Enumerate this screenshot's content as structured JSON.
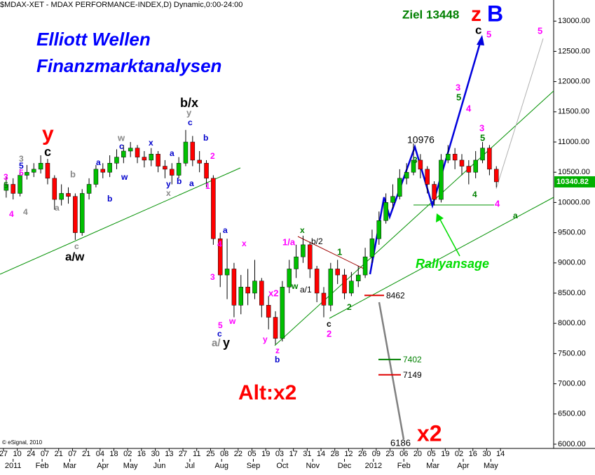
{
  "chart_data": {
    "type": "candlestick",
    "title": "$MDAX-XET - MDAX PERFORMANCE-INDEX,D) Dynamic,0:00-24:00",
    "source": "© eSignal, 2010",
    "up_color": "#00c000",
    "down_color": "#ff0000",
    "x": [
      2,
      7,
      12,
      17,
      22,
      27,
      32,
      37,
      42,
      47,
      52,
      57,
      62,
      67,
      72,
      77,
      82,
      87,
      92,
      97,
      102,
      107,
      112,
      117,
      122,
      127,
      132,
      137,
      142,
      147,
      152,
      157,
      162,
      167,
      172,
      177,
      182,
      187,
      192,
      197,
      202,
      207,
      212,
      217,
      222,
      227,
      232,
      237,
      242,
      247,
      252,
      257,
      262,
      267,
      272,
      277,
      282,
      287,
      292,
      297,
      302,
      307,
      312,
      317,
      322,
      327,
      332,
      337,
      342,
      347,
      352,
      357
    ],
    "candles": [
      [
        10200,
        10420,
        10080,
        10300
      ],
      [
        10300,
        10400,
        10050,
        10150
      ],
      [
        10150,
        10550,
        10100,
        10450
      ],
      [
        10450,
        10620,
        10380,
        10500
      ],
      [
        10500,
        10650,
        10420,
        10550
      ],
      [
        10550,
        10780,
        10480,
        10650
      ],
      [
        10650,
        10720,
        10300,
        10400
      ],
      [
        10400,
        10450,
        9880,
        10050
      ],
      [
        10050,
        10300,
        9950,
        10150
      ],
      [
        10150,
        10250,
        9980,
        10100
      ],
      [
        10100,
        10150,
        9380,
        9500
      ],
      [
        9500,
        10220,
        9450,
        10150
      ],
      [
        10150,
        10400,
        10050,
        10300
      ],
      [
        10300,
        10620,
        10250,
        10550
      ],
      [
        10550,
        10650,
        10400,
        10500
      ],
      [
        10500,
        10780,
        10420,
        10650
      ],
      [
        10650,
        10880,
        10550,
        10750
      ],
      [
        10750,
        10950,
        10650,
        10850
      ],
      [
        10850,
        11000,
        10750,
        10900
      ],
      [
        10900,
        10950,
        10650,
        10750
      ],
      [
        10750,
        10850,
        10580,
        10700
      ],
      [
        10700,
        10900,
        10600,
        10800
      ],
      [
        10800,
        10850,
        10500,
        10600
      ],
      [
        10600,
        10700,
        10400,
        10550
      ],
      [
        10550,
        10650,
        10300,
        10450
      ],
      [
        10450,
        10750,
        10400,
        10650
      ],
      [
        10650,
        11200,
        10600,
        11000
      ],
      [
        11000,
        11100,
        10600,
        10700
      ],
      [
        10700,
        10850,
        10500,
        10650
      ],
      [
        10650,
        10700,
        10250,
        10400
      ],
      [
        10400,
        10450,
        9300,
        9400
      ],
      [
        9400,
        9500,
        8600,
        8800
      ],
      [
        8800,
        9400,
        8400,
        8900
      ],
      [
        8900,
        9000,
        8100,
        8300
      ],
      [
        8300,
        8800,
        8150,
        8600
      ],
      [
        8600,
        8900,
        8300,
        8500
      ],
      [
        8500,
        9050,
        8400,
        8700
      ],
      [
        8700,
        8750,
        8100,
        8300
      ],
      [
        8300,
        8450,
        7900,
        8100
      ],
      [
        8100,
        8200,
        7650,
        7750
      ],
      [
        7750,
        8700,
        7700,
        8600
      ],
      [
        8600,
        9050,
        8500,
        8900
      ],
      [
        8900,
        9300,
        8750,
        9100
      ],
      [
        9100,
        9450,
        9000,
        9300
      ],
      [
        9300,
        9350,
        8750,
        8900
      ],
      [
        8900,
        8950,
        8350,
        8500
      ],
      [
        8500,
        8600,
        8100,
        8300
      ],
      [
        8300,
        9000,
        8200,
        8900
      ],
      [
        8900,
        9050,
        8650,
        8800
      ],
      [
        8800,
        8900,
        8400,
        8500
      ],
      [
        8500,
        8850,
        8450,
        8700
      ],
      [
        8700,
        8950,
        8600,
        8800
      ],
      [
        8800,
        9250,
        8750,
        9100
      ],
      [
        9100,
        9550,
        9000,
        9400
      ],
      [
        9400,
        9850,
        9300,
        9700
      ],
      [
        9700,
        10150,
        9650,
        10000
      ],
      [
        10000,
        10300,
        9900,
        10100
      ],
      [
        10100,
        10550,
        10050,
        10400
      ],
      [
        10400,
        10650,
        10300,
        10500
      ],
      [
        10500,
        10976,
        10450,
        10700
      ],
      [
        10700,
        10800,
        10400,
        10550
      ],
      [
        10550,
        10600,
        10150,
        10300
      ],
      [
        10300,
        10350,
        9950,
        10050
      ],
      [
        10050,
        10800,
        10000,
        10700
      ],
      [
        10700,
        10950,
        10650,
        10800
      ],
      [
        10800,
        10900,
        10550,
        10700
      ],
      [
        10700,
        10800,
        10450,
        10600
      ],
      [
        10600,
        10700,
        10300,
        10500
      ],
      [
        10500,
        10850,
        10400,
        10700
      ],
      [
        10700,
        11000,
        10650,
        10900
      ],
      [
        10900,
        10950,
        10450,
        10550
      ],
      [
        10550,
        10600,
        10250,
        10341
      ]
    ],
    "xlim": [
      -2.5,
      398.5
    ],
    "xticks": [
      {
        "value": 0,
        "label": "27"
      },
      {
        "value": 10,
        "label": "10"
      },
      {
        "value": 20,
        "label": "24"
      },
      {
        "value": 30,
        "label": "07"
      },
      {
        "value": 40,
        "label": "21"
      },
      {
        "value": 50,
        "label": "07"
      },
      {
        "value": 60,
        "label": "21"
      },
      {
        "value": 70,
        "label": "04"
      },
      {
        "value": 80,
        "label": "18"
      },
      {
        "value": 90,
        "label": "02"
      },
      {
        "value": 100,
        "label": "16"
      },
      {
        "value": 110,
        "label": "30"
      },
      {
        "value": 120,
        "label": "13"
      },
      {
        "value": 130,
        "label": "27"
      },
      {
        "value": 140,
        "label": "11"
      },
      {
        "value": 150,
        "label": "25"
      },
      {
        "value": 160,
        "label": "08"
      },
      {
        "value": 170,
        "label": "22"
      },
      {
        "value": 180,
        "label": "05"
      },
      {
        "value": 190,
        "label": "19"
      },
      {
        "value": 200,
        "label": "03"
      },
      {
        "value": 210,
        "label": "17"
      },
      {
        "value": 220,
        "label": "31"
      },
      {
        "value": 230,
        "label": "14"
      },
      {
        "value": 240,
        "label": "28"
      },
      {
        "value": 250,
        "label": "12"
      },
      {
        "value": 260,
        "label": "26"
      },
      {
        "value": 270,
        "label": "09"
      },
      {
        "value": 280,
        "label": "23"
      },
      {
        "value": 290,
        "label": "06"
      },
      {
        "value": 300,
        "label": "20"
      },
      {
        "value": 310,
        "label": "05"
      },
      {
        "value": 320,
        "label": "19"
      },
      {
        "value": 330,
        "label": "02"
      },
      {
        "value": 340,
        "label": "16"
      },
      {
        "value": 350,
        "label": "30"
      },
      {
        "value": 360,
        "label": "14"
      }
    ],
    "month_ticks": [
      {
        "value": 7,
        "label": "2011"
      },
      {
        "value": 28,
        "label": "Feb"
      },
      {
        "value": 48,
        "label": "Mar"
      },
      {
        "value": 72,
        "label": "Apr"
      },
      {
        "value": 92,
        "label": "May"
      },
      {
        "value": 113,
        "label": "Jun"
      },
      {
        "value": 135,
        "label": "Jul"
      },
      {
        "value": 158,
        "label": "Aug"
      },
      {
        "value": 181,
        "label": "Sep"
      },
      {
        "value": 202,
        "label": "Oct"
      },
      {
        "value": 224,
        "label": "Nov"
      },
      {
        "value": 247,
        "label": "Dec"
      },
      {
        "value": 268,
        "label": "2012"
      },
      {
        "value": 290,
        "label": "Feb"
      },
      {
        "value": 311,
        "label": "Mar"
      },
      {
        "value": 333,
        "label": "Apr"
      },
      {
        "value": 353,
        "label": "May"
      }
    ],
    "ylim": [
      5930,
      13350
    ],
    "yticks": [
      {
        "value": 6000,
        "label": "6000.00"
      },
      {
        "value": 6500,
        "label": "6500.00"
      },
      {
        "value": 7000,
        "label": "7000.00"
      },
      {
        "value": 7500,
        "label": "7500.00"
      },
      {
        "value": 8000,
        "label": "8000.00"
      },
      {
        "value": 8500,
        "label": "8500.00"
      },
      {
        "value": 9000,
        "label": "9000.00"
      },
      {
        "value": 9500,
        "label": "9500.00"
      },
      {
        "value": 10000,
        "label": "10000.00"
      },
      {
        "value": 10500,
        "label": "10500.00"
      },
      {
        "value": 11000,
        "label": "11000.00"
      },
      {
        "value": 11500,
        "label": "11500.00"
      },
      {
        "value": 12000,
        "label": "12000.00"
      },
      {
        "value": 12500,
        "label": "12500.00"
      },
      {
        "value": 13000,
        "label": "13000.00"
      }
    ],
    "last_value": 10340.82,
    "last_value_color": "#00b000",
    "levels": [
      {
        "value": 8462,
        "color": "#e00000"
      },
      {
        "value": 7402,
        "color": "#008000"
      },
      {
        "value": 7149,
        "color": "#e00000"
      }
    ],
    "annotations": [
      {
        "text": "Elliott Wellen",
        "color": "#0000ff"
      },
      {
        "text": "Finanzmarktanalysen",
        "color": "#0000ff"
      },
      {
        "text": "Ziel 13448",
        "color": "#008000"
      },
      {
        "text": "z",
        "color": "#ff0000"
      },
      {
        "text": "B",
        "color": "#0000ff"
      },
      {
        "text": "c",
        "color": "#000000"
      },
      {
        "text": "5",
        "color": "#ff00ff"
      },
      {
        "text": "5",
        "color": "#ff00ff"
      },
      {
        "text": "3",
        "color": "#ff00ff"
      },
      {
        "text": "5",
        "color": "#008000"
      },
      {
        "text": "4",
        "color": "#ff00ff"
      },
      {
        "text": "10976",
        "color": "#000000"
      },
      {
        "text": "3",
        "color": "#008000"
      },
      {
        "text": "3",
        "color": "#ff00ff"
      },
      {
        "text": "5",
        "color": "#008000"
      },
      {
        "text": "4",
        "color": "#008000"
      },
      {
        "text": "4",
        "color": "#ff00ff"
      },
      {
        "text": "a",
        "color": "#008000"
      },
      {
        "text": "Rallyansage",
        "color": "#00dd00"
      },
      {
        "text": "6186",
        "color": "#000000"
      },
      {
        "text": "x2",
        "color": "#ff0000"
      },
      {
        "text": "Alt:x2",
        "color": "#ff0000"
      },
      {
        "text": "y",
        "color": "#ff0000"
      },
      {
        "text": "c",
        "color": "#000000"
      },
      {
        "text": "3",
        "color": "#888888"
      },
      {
        "text": "5",
        "color": "#0000cc"
      },
      {
        "text": "5",
        "color": "#ff00ff"
      },
      {
        "text": "3",
        "color": "#ff00ff"
      },
      {
        "text": "5",
        "color": "#008000"
      },
      {
        "text": "4",
        "color": "#ff00ff"
      },
      {
        "text": "4",
        "color": "#888888"
      },
      {
        "text": "b",
        "color": "#888888"
      },
      {
        "text": "a",
        "color": "#888888"
      },
      {
        "text": "c",
        "color": "#888888"
      },
      {
        "text": "a/w",
        "color": "#000000"
      },
      {
        "text": "w",
        "color": "#888888"
      },
      {
        "text": "c",
        "color": "#0000cc"
      },
      {
        "text": "a",
        "color": "#0000cc"
      },
      {
        "text": "x",
        "color": "#0000cc"
      },
      {
        "text": "a",
        "color": "#0000cc"
      },
      {
        "text": "w",
        "color": "#0000cc"
      },
      {
        "text": "b",
        "color": "#0000cc"
      },
      {
        "text": "y",
        "color": "#0000cc"
      },
      {
        "text": "x",
        "color": "#888888"
      },
      {
        "text": "b",
        "color": "#0000cc"
      },
      {
        "text": "a",
        "color": "#0000cc"
      },
      {
        "text": "b",
        "color": "#0000cc"
      },
      {
        "text": "2",
        "color": "#ff00ff"
      },
      {
        "text": "1",
        "color": "#ff00ff"
      },
      {
        "text": "b/x",
        "color": "#000000"
      },
      {
        "text": "y",
        "color": "#888888"
      },
      {
        "text": "c",
        "color": "#0000cc"
      },
      {
        "text": "a",
        "color": "#0000cc"
      },
      {
        "text": "4",
        "color": "#ff00ff"
      },
      {
        "text": "x",
        "color": "#ff00ff"
      },
      {
        "text": "3",
        "color": "#ff00ff"
      },
      {
        "text": "5",
        "color": "#ff00ff"
      },
      {
        "text": "c",
        "color": "#0000cc"
      },
      {
        "text": "a/",
        "color": "#888888"
      },
      {
        "text": "y",
        "color": "#000000"
      },
      {
        "text": "w",
        "color": "#ff00ff"
      },
      {
        "text": "x2",
        "color": "#ff00ff"
      },
      {
        "text": "y",
        "color": "#ff00ff"
      },
      {
        "text": "z",
        "color": "#ff00ff"
      },
      {
        "text": "b",
        "color": "#0000cc"
      },
      {
        "text": "1/a",
        "color": "#ff00ff"
      },
      {
        "text": "x",
        "color": "#008000"
      },
      {
        "text": "b/2",
        "color": "#000000"
      },
      {
        "text": "w",
        "color": "#008000"
      },
      {
        "text": "a/1",
        "color": "#000000"
      },
      {
        "text": "1",
        "color": "#008000"
      },
      {
        "text": "2",
        "color": "#008000"
      },
      {
        "text": "c",
        "color": "#000000"
      },
      {
        "text": "2",
        "color": "#ff00ff"
      }
    ]
  }
}
